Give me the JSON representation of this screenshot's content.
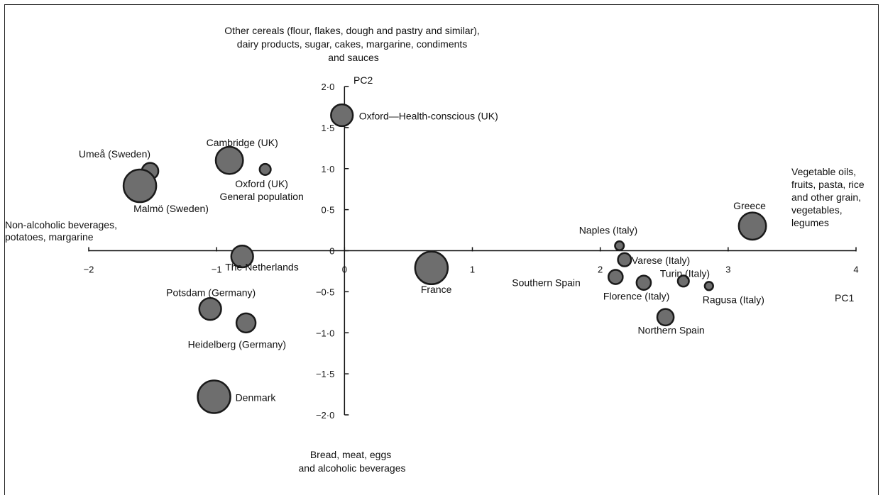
{
  "chart_data": {
    "type": "scatter",
    "xlabel": "PC1",
    "ylabel": "PC2",
    "xlim": [
      -2,
      4
    ],
    "ylim": [
      -2,
      2
    ],
    "x_ticks": [
      {
        "v": -2,
        "label": "−2"
      },
      {
        "v": -1,
        "label": "−1"
      },
      {
        "v": 0,
        "label": "0"
      },
      {
        "v": 1,
        "label": "1"
      },
      {
        "v": 2,
        "label": "2"
      },
      {
        "v": 3,
        "label": "3"
      },
      {
        "v": 4,
        "label": "4"
      }
    ],
    "y_ticks": [
      {
        "v": 2,
        "label": "2·0"
      },
      {
        "v": 1.5,
        "label": "1·5"
      },
      {
        "v": 1,
        "label": "1·0"
      },
      {
        "v": 0.5,
        "label": "0·5"
      },
      {
        "v": 0,
        "label": "0"
      },
      {
        "v": -0.5,
        "label": "−0·5"
      },
      {
        "v": -1,
        "label": "−1·0"
      },
      {
        "v": -1.5,
        "label": "−1·5"
      },
      {
        "v": -2,
        "label": "−2·0"
      }
    ],
    "points": [
      {
        "name": "Oxford—Health-conscious (UK)",
        "x": -0.02,
        "y": 1.65,
        "size": 3
      },
      {
        "name": "Cambridge (UK)",
        "x": -0.9,
        "y": 1.1,
        "size": 4
      },
      {
        "name": "Umeå (Sweden)",
        "x": -1.52,
        "y": 0.97,
        "size": 2
      },
      {
        "name": "Malmö (Sweden)",
        "x": -1.6,
        "y": 0.79,
        "size": 5
      },
      {
        "name": "Oxford (UK)\nGeneral population",
        "x": -0.62,
        "y": 0.99,
        "size": 1
      },
      {
        "name": "The Netherlands",
        "x": -0.8,
        "y": -0.07,
        "size": 3
      },
      {
        "name": "France",
        "x": 0.68,
        "y": -0.21,
        "size": 5
      },
      {
        "name": "Potsdam (Germany)",
        "x": -1.05,
        "y": -0.71,
        "size": 3
      },
      {
        "name": "Heidelberg (Germany)",
        "x": -0.77,
        "y": -0.88,
        "size": 2.5
      },
      {
        "name": "Denmark",
        "x": -1.02,
        "y": -1.78,
        "size": 5
      },
      {
        "name": "Naples (Italy)",
        "x": 2.15,
        "y": 0.06,
        "size": 0.6
      },
      {
        "name": "Varese (Italy)",
        "x": 2.19,
        "y": -0.11,
        "size": 1.4
      },
      {
        "name": "Southern Spain",
        "x": 2.12,
        "y": -0.32,
        "size": 1.6
      },
      {
        "name": "Florence (Italy)",
        "x": 2.34,
        "y": -0.39,
        "size": 1.6
      },
      {
        "name": "Turin (Italy)",
        "x": 2.65,
        "y": -0.37,
        "size": 1
      },
      {
        "name": "Ragusa (Italy)",
        "x": 2.85,
        "y": -0.43,
        "size": 0.5
      },
      {
        "name": "Northern Spain",
        "x": 2.51,
        "y": -0.81,
        "size": 2
      },
      {
        "name": "Greece",
        "x": 3.19,
        "y": 0.3,
        "size": 4
      }
    ],
    "annotations": {
      "top": [
        "Other cereals (flour, flakes, dough and pastry and similar),",
        "dairy products, sugar, cakes, margarine, condiments",
        "and sauces"
      ],
      "bottom": [
        "Bread, meat, eggs",
        "and alcoholic beverages"
      ],
      "left": [
        "Non-alcoholic beverages,",
        "potatoes, margarine"
      ],
      "right": [
        "Vegetable oils,",
        "fruits, pasta, rice",
        "and other grain,",
        "vegetables,",
        "legumes"
      ]
    },
    "colors": {
      "marker_fill": "#6e6e6e",
      "marker_stroke": "#1a1a1a",
      "axis": "#111111"
    },
    "grid": false,
    "legend": "none"
  }
}
